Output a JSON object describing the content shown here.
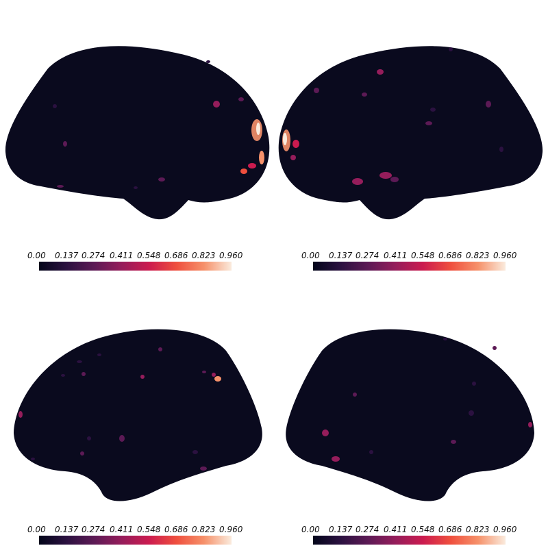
{
  "colorbar": {
    "ticks": [
      "0.00",
      "0.137",
      "0.274",
      "0.411",
      "0.548",
      "0.686",
      "0.823",
      "0.960"
    ],
    "colormap": "rocket",
    "stops": [
      "#03051a",
      "#2b1140",
      "#5c1a55",
      "#951d5b",
      "#cb1b4f",
      "#ef4f3e",
      "#f6916a",
      "#faebdd"
    ]
  },
  "background_color": "#ffffff",
  "brain_base_color": "#0a0a1e",
  "panels": [
    {
      "view": "left lateral",
      "ticks_ref": "colorbar.ticks"
    },
    {
      "view": "right lateral",
      "ticks_ref": "colorbar.ticks"
    },
    {
      "view": "left medial",
      "ticks_ref": "colorbar.ticks"
    },
    {
      "view": "right medial",
      "ticks_ref": "colorbar.ticks"
    }
  ]
}
